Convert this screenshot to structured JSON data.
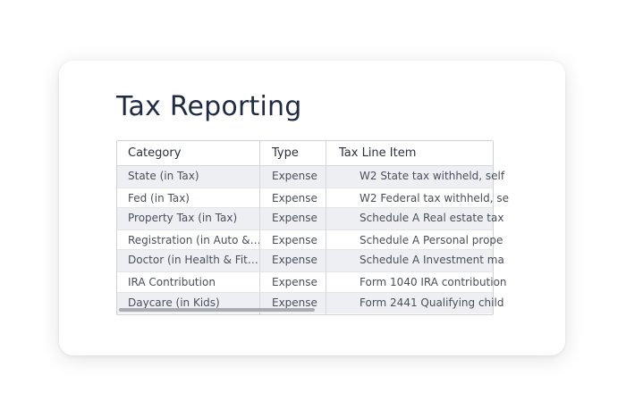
{
  "page": {
    "title": "Tax Reporting"
  },
  "table": {
    "columns": [
      "Category",
      "Type",
      "Tax Line Item"
    ],
    "rows": [
      {
        "category": "State (in Tax)",
        "type": "Expense",
        "tax_line_item": "W2 State tax withheld, self"
      },
      {
        "category": "Fed (in Tax)",
        "type": "Expense",
        "tax_line_item": "W2 Federal tax withheld, se"
      },
      {
        "category": "Property Tax (in Tax)",
        "type": "Expense",
        "tax_line_item": "Schedule A Real estate tax"
      },
      {
        "category": "Registration (in Auto &…",
        "type": "Expense",
        "tax_line_item": "Schedule A Personal prope"
      },
      {
        "category": "Doctor (in Health & Fit…",
        "type": "Expense",
        "tax_line_item": "Schedule A Investment ma"
      },
      {
        "category": "IRA Contribution",
        "type": "Expense",
        "tax_line_item": "Form 1040 IRA contribution"
      },
      {
        "category": "Daycare (in Kids)",
        "type": "Expense",
        "tax_line_item": "Form 2441 Qualifying child"
      }
    ]
  },
  "colors": {
    "title": "#1f2a44",
    "row_alt": "#eeeff2",
    "scrollbar": "#a9acb3"
  }
}
